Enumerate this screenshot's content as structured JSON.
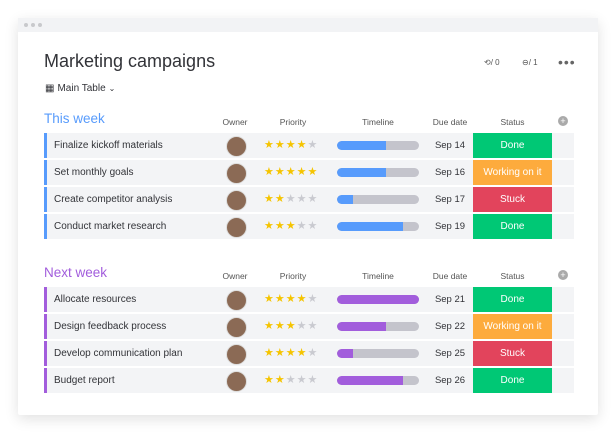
{
  "header": {
    "title": "Marketing campaigns",
    "view": "Main Table",
    "activity": "/ 0",
    "members": "/ 1",
    "more": "•••"
  },
  "columns": {
    "owner": "Owner",
    "priority": "Priority",
    "timeline": "Timeline",
    "due": "Due date",
    "status": "Status",
    "add": "+"
  },
  "groups": [
    {
      "title": "This week",
      "color": "#579bfc",
      "bar": "#579bfc",
      "rows": [
        {
          "name": "Finalize kickoff materials",
          "stars": 4,
          "timeline": 0.6,
          "due": "Sep 14",
          "status": "Done",
          "status_color": "#00c875"
        },
        {
          "name": "Set monthly goals",
          "stars": 5,
          "timeline": 0.6,
          "due": "Sep 16",
          "status": "Working on it",
          "status_color": "#fdab3d"
        },
        {
          "name": "Create competitor analysis",
          "stars": 2,
          "timeline": 0.2,
          "due": "Sep 17",
          "status": "Stuck",
          "status_color": "#e2445c"
        },
        {
          "name": "Conduct market research",
          "stars": 3,
          "timeline": 0.8,
          "due": "Sep 19",
          "status": "Done",
          "status_color": "#00c875"
        }
      ]
    },
    {
      "title": "Next week",
      "color": "#a25ddc",
      "bar": "#a25ddc",
      "rows": [
        {
          "name": "Allocate resources",
          "stars": 4,
          "timeline": 1.0,
          "due": "Sep 21",
          "status": "Done",
          "status_color": "#00c875"
        },
        {
          "name": "Design feedback process",
          "stars": 3,
          "timeline": 0.6,
          "due": "Sep 22",
          "status": "Working on it",
          "status_color": "#fdab3d"
        },
        {
          "name": "Develop communication plan",
          "stars": 4,
          "timeline": 0.2,
          "due": "Sep 25",
          "status": "Stuck",
          "status_color": "#e2445c"
        },
        {
          "name": "Budget report",
          "stars": 2,
          "timeline": 0.8,
          "due": "Sep 26",
          "status": "Done",
          "status_color": "#00c875"
        }
      ]
    }
  ]
}
